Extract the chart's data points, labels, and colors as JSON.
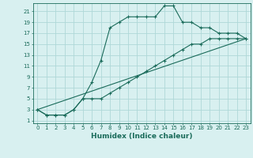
{
  "xlabel": "Humidex (Indice chaleur)",
  "bg_color": "#d8f0f0",
  "grid_color": "#afd8d8",
  "line_color": "#1a6b5a",
  "xlim": [
    -0.5,
    23.5
  ],
  "ylim": [
    0.5,
    22.5
  ],
  "xticks": [
    0,
    1,
    2,
    3,
    4,
    5,
    6,
    7,
    8,
    9,
    10,
    11,
    12,
    13,
    14,
    15,
    16,
    17,
    18,
    19,
    20,
    21,
    22,
    23
  ],
  "yticks": [
    1,
    3,
    5,
    7,
    9,
    11,
    13,
    15,
    17,
    19,
    21
  ],
  "series1_x": [
    0,
    1,
    2,
    3,
    4,
    5,
    6,
    7,
    8,
    9,
    10,
    11,
    12,
    13,
    14,
    15,
    16,
    17,
    18,
    19,
    20,
    21,
    22,
    23
  ],
  "series1_y": [
    3,
    2,
    2,
    2,
    3,
    5,
    8,
    12,
    18,
    19,
    20,
    20,
    20,
    20,
    22,
    22,
    19,
    19,
    18,
    18,
    17,
    17,
    17,
    16
  ],
  "series2_x": [
    0,
    1,
    2,
    3,
    4,
    5,
    6,
    7,
    8,
    9,
    10,
    11,
    12,
    13,
    14,
    15,
    16,
    17,
    18,
    19,
    20,
    21,
    22,
    23
  ],
  "series2_y": [
    3,
    2,
    2,
    2,
    3,
    5,
    5,
    5,
    6,
    7,
    8,
    9,
    10,
    11,
    12,
    13,
    14,
    15,
    15,
    16,
    16,
    16,
    16,
    16
  ],
  "series3_x": [
    0,
    23
  ],
  "series3_y": [
    3,
    16
  ],
  "xlabel_fontsize": 6.5,
  "tick_fontsize": 5.0
}
